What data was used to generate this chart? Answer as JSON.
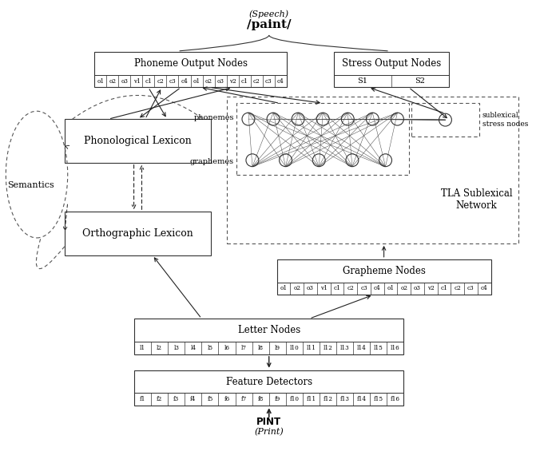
{
  "title_speech": "(Speech)",
  "title_paint": "/paint/",
  "phoneme_output_label": "Phoneme Output Nodes",
  "phoneme_cells": [
    "o1",
    "o2",
    "o3",
    "v1",
    "c1",
    "c2",
    "c3",
    "c4",
    "o1",
    "o2",
    "o3",
    "v2",
    "c1",
    "c2",
    "c3",
    "c4"
  ],
  "stress_output_label": "Stress Output Nodes",
  "stress_cells": [
    "S1",
    "S2"
  ],
  "phonological_lexicon_label": "Phonological Lexicon",
  "semantics_label": "Semantics",
  "orthographic_lexicon_label": "Orthographic Lexicon",
  "tla_label": "TLA Sublexical\nNetwork",
  "phonemes_label": "phonemes",
  "graphemes_label": "graphemes",
  "sublexical_label": "sublexical\nstress nodes",
  "grapheme_nodes_label": "Grapheme Nodes",
  "grapheme_cells": [
    "o1",
    "o2",
    "o3",
    "v1",
    "c1",
    "c2",
    "c3",
    "c4",
    "o1",
    "o2",
    "o3",
    "v2",
    "c1",
    "c2",
    "c3",
    "c4"
  ],
  "letter_nodes_label": "Letter Nodes",
  "letter_cells": [
    "l1",
    "l2",
    "l3",
    "l4",
    "l5",
    "l6",
    "l7",
    "l8",
    "l9",
    "l10",
    "l11",
    "l12",
    "l13",
    "l14",
    "l15",
    "l16"
  ],
  "feature_detectors_label": "Feature Detectors",
  "feature_cells": [
    "f1",
    "f2",
    "f3",
    "f4",
    "f5",
    "f6",
    "f7",
    "f8",
    "f9",
    "f10",
    "f11",
    "f12",
    "f13",
    "f14",
    "f15",
    "f16"
  ],
  "print_label": "PINT",
  "print_italic": "(Print)",
  "bg_color": "#ffffff",
  "border_color": "#333333"
}
